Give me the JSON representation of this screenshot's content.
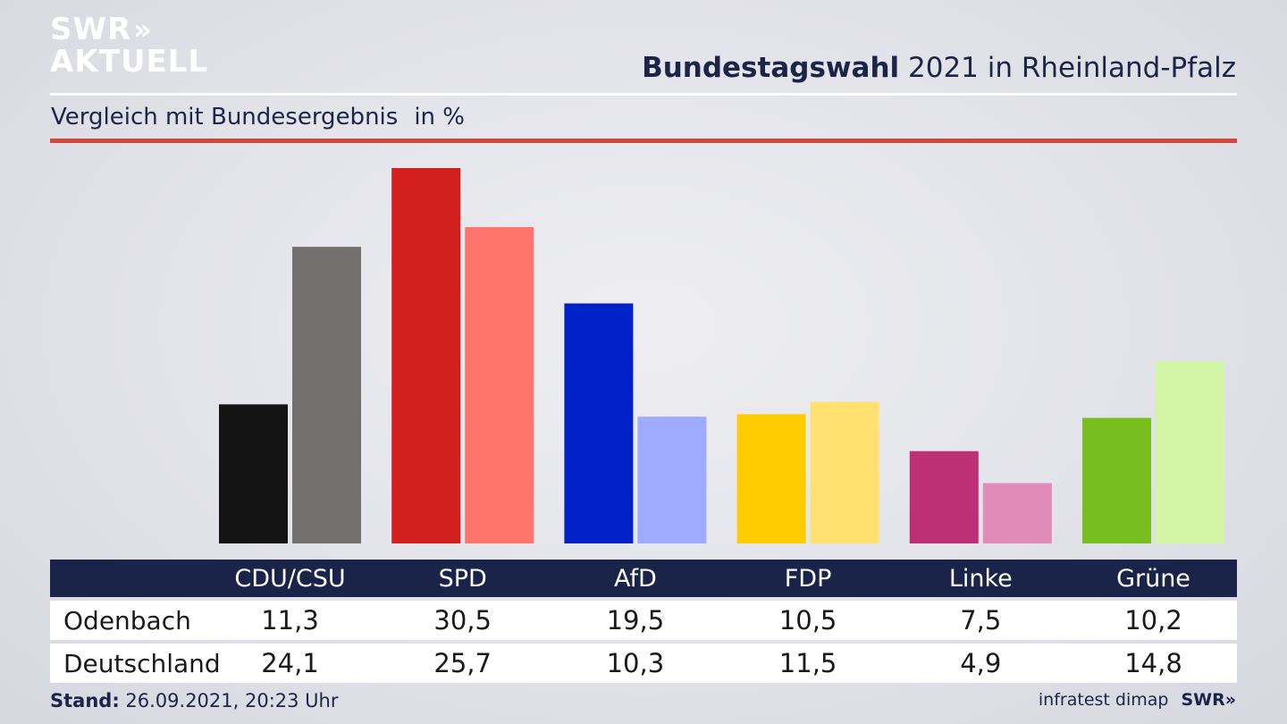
{
  "brand": {
    "logo_line1": "SWR",
    "logo_chevrons": "»",
    "logo_line2": "AKTUELL"
  },
  "header": {
    "title_bold": "Bundestagswahl",
    "title_rest": " 2021 in Rheinland-Pfalz"
  },
  "subtitle": {
    "text": "Vergleich mit Bundesergebnis",
    "unit": "in %"
  },
  "chart_data": {
    "type": "bar",
    "categories": [
      "CDU/CSU",
      "SPD",
      "AfD",
      "FDP",
      "Linke",
      "Grüne"
    ],
    "series": [
      {
        "name": "Odenbach",
        "values": [
          11.3,
          30.5,
          19.5,
          10.5,
          7.5,
          10.2
        ],
        "colors": [
          "#141414",
          "#d41f1f",
          "#0022c8",
          "#ffcc00",
          "#be3075",
          "#78be20"
        ]
      },
      {
        "name": "Deutschland",
        "values": [
          24.1,
          25.7,
          10.3,
          11.5,
          4.9,
          14.8
        ],
        "colors": [
          "#73716f",
          "#ff756e",
          "#9eabff",
          "#ffe070",
          "#e08bb8",
          "#d3f5a6"
        ]
      }
    ],
    "ylim": [
      0,
      31
    ],
    "grid": false,
    "legend": "table-below"
  },
  "footer": {
    "stand_label": "Stand:",
    "stand_value": " 26.09.2021, 20:23 Uhr",
    "source": "infratest dimap",
    "source_brand": "SWR»"
  }
}
